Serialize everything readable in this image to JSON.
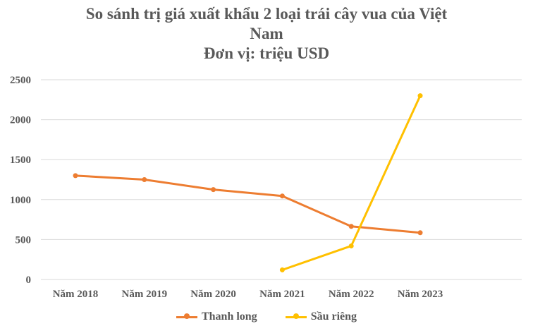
{
  "chart_data": {
    "type": "line",
    "title_lines": [
      "So sánh trị giá xuất khẩu 2 loại trái cây vua của Việt",
      "Nam",
      "Đơn vị: triệu USD"
    ],
    "xlabel": "",
    "ylabel": "",
    "categories": [
      "Năm 2018",
      "Năm 2019",
      "Năm 2020",
      "Năm 2021",
      "Năm 2022",
      "Năm 2023"
    ],
    "y_ticks": [
      "0",
      "500",
      "1000",
      "1500",
      "2000",
      "2500"
    ],
    "ylim": [
      0,
      2500
    ],
    "grid": true,
    "legend_position": "bottom",
    "series": [
      {
        "name": "Thanh long",
        "color": "#ED7D31",
        "values": [
          1300,
          1250,
          1125,
          1045,
          665,
          585
        ]
      },
      {
        "name": "Sầu riêng",
        "color": "#FFC000",
        "values": [
          null,
          null,
          null,
          120,
          420,
          2300
        ]
      }
    ]
  }
}
